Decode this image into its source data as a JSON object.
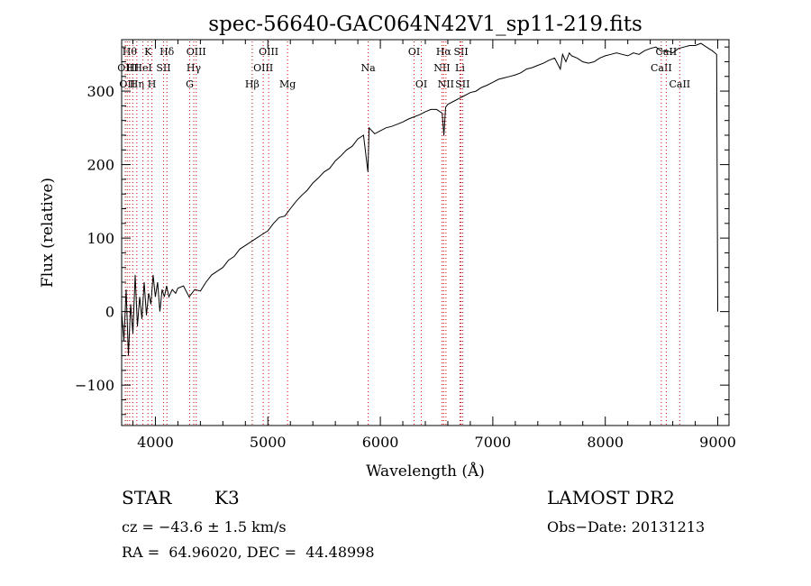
{
  "chart_data": {
    "type": "line",
    "title": "spec-56640-GAC064N42V1_sp11-219.fits",
    "xlabel": "Wavelength (Å)",
    "ylabel": "Flux (relative)",
    "xlim": [
      3700,
      9100
    ],
    "ylim": [
      -155,
      370
    ],
    "xticks": [
      4000,
      5000,
      6000,
      7000,
      8000,
      9000
    ],
    "yticks": [
      -100,
      0,
      100,
      200,
      300
    ],
    "xtick_labels": [
      "4000",
      "5000",
      "6000",
      "7000",
      "8000",
      "9000"
    ],
    "ytick_labels": [
      "−100",
      "0",
      "100",
      "200",
      "300"
    ],
    "line_color": "#000000",
    "marker_color": "#cc0000",
    "series": [
      {
        "x": [
          3700,
          3720,
          3740,
          3760,
          3780,
          3800,
          3820,
          3840,
          3860,
          3880,
          3900,
          3920,
          3940,
          3960,
          3980,
          4000,
          4020,
          4040,
          4060,
          4080,
          4100,
          4120,
          4150,
          4180,
          4200,
          4250,
          4300,
          4350,
          4400,
          4450,
          4500,
          4550,
          4600,
          4650,
          4700,
          4750,
          4800,
          4850,
          4900,
          4950,
          5000,
          5050,
          5100,
          5150,
          5200,
          5250,
          5300,
          5350,
          5400,
          5450,
          5500,
          5550,
          5600,
          5650,
          5700,
          5750,
          5800,
          5850,
          5890,
          5900,
          5950,
          6000,
          6050,
          6100,
          6150,
          6200,
          6250,
          6300,
          6350,
          6400,
          6450,
          6500,
          6550,
          6565,
          6580,
          6600,
          6650,
          6700,
          6750,
          6800,
          6850,
          6900,
          6950,
          7000,
          7050,
          7100,
          7150,
          7200,
          7250,
          7300,
          7350,
          7400,
          7450,
          7500,
          7550,
          7600,
          7620,
          7650,
          7680,
          7700,
          7750,
          7800,
          7850,
          7900,
          7950,
          8000,
          8050,
          8100,
          8150,
          8200,
          8250,
          8300,
          8350,
          8400,
          8450,
          8500,
          8550,
          8600,
          8650,
          8700,
          8750,
          8800,
          8850,
          8900,
          8950,
          8990,
          9000
        ],
        "y": [
          0,
          -40,
          30,
          -60,
          10,
          -30,
          50,
          -20,
          20,
          -10,
          40,
          -5,
          25,
          10,
          50,
          20,
          40,
          0,
          30,
          20,
          35,
          20,
          30,
          25,
          32,
          35,
          20,
          30,
          28,
          40,
          50,
          55,
          60,
          70,
          75,
          85,
          90,
          95,
          100,
          105,
          110,
          120,
          128,
          130,
          140,
          150,
          158,
          165,
          175,
          182,
          190,
          195,
          205,
          212,
          220,
          225,
          235,
          240,
          190,
          250,
          242,
          246,
          250,
          252,
          255,
          258,
          262,
          265,
          268,
          272,
          275,
          275,
          270,
          240,
          278,
          282,
          286,
          290,
          294,
          298,
          300,
          305,
          308,
          312,
          316,
          318,
          320,
          322,
          325,
          330,
          332,
          335,
          338,
          342,
          345,
          330,
          350,
          340,
          352,
          348,
          345,
          340,
          338,
          340,
          345,
          348,
          350,
          352,
          350,
          348,
          352,
          350,
          355,
          358,
          360,
          354,
          355,
          352,
          358,
          360,
          362,
          362,
          365,
          360,
          355,
          350,
          0
        ]
      }
    ],
    "line_markers": [
      {
        "x": 3733,
        "label": "OII",
        "row": 1
      },
      {
        "x": 3750,
        "label": "OII",
        "row": 2
      },
      {
        "x": 3771,
        "label": "Hθ",
        "row": 0
      },
      {
        "x": 3798,
        "label": "HI",
        "row": 1
      },
      {
        "x": 3835,
        "label": "Hη",
        "row": 2
      },
      {
        "x": 3889,
        "label": "HeI",
        "row": 1
      },
      {
        "x": 3934,
        "label": "K",
        "row": 0
      },
      {
        "x": 3969,
        "label": "H",
        "row": 2
      },
      {
        "x": 4072,
        "label": "SII",
        "row": 1
      },
      {
        "x": 4102,
        "label": "Hδ",
        "row": 0
      },
      {
        "x": 4341,
        "label": "Hγ",
        "row": 1
      },
      {
        "x": 4363,
        "label": "OIII",
        "row": 0
      },
      {
        "x": 4305,
        "label": "G",
        "row": 2
      },
      {
        "x": 4861,
        "label": "Hβ",
        "row": 2
      },
      {
        "x": 4959,
        "label": "OIII",
        "row": 1
      },
      {
        "x": 5007,
        "label": "OIII",
        "row": 0
      },
      {
        "x": 5175,
        "label": "Mg",
        "row": 2
      },
      {
        "x": 5892,
        "label": "Na",
        "row": 1
      },
      {
        "x": 6300,
        "label": "OI",
        "row": 0
      },
      {
        "x": 6364,
        "label": "OI",
        "row": 2
      },
      {
        "x": 6548,
        "label": "NII",
        "row": 1
      },
      {
        "x": 6563,
        "label": "Hα",
        "row": 0
      },
      {
        "x": 6583,
        "label": "NII",
        "row": 2
      },
      {
        "x": 6708,
        "label": "Li",
        "row": 1
      },
      {
        "x": 6717,
        "label": "SII",
        "row": 0
      },
      {
        "x": 6731,
        "label": "SII",
        "row": 2
      },
      {
        "x": 8498,
        "label": "CaII",
        "row": 1
      },
      {
        "x": 8542,
        "label": "CaII",
        "row": 0
      },
      {
        "x": 8662,
        "label": "CaII",
        "row": 2
      }
    ]
  },
  "info": {
    "object_class": "STAR",
    "subclass": "K3",
    "survey": "LAMOST DR2",
    "redshift": "cz = −43.6 ± 1.5 km/s",
    "obs_date": "Obs−Date: 20131213",
    "coords": "RA =  64.96020, DEC =  44.48998"
  }
}
